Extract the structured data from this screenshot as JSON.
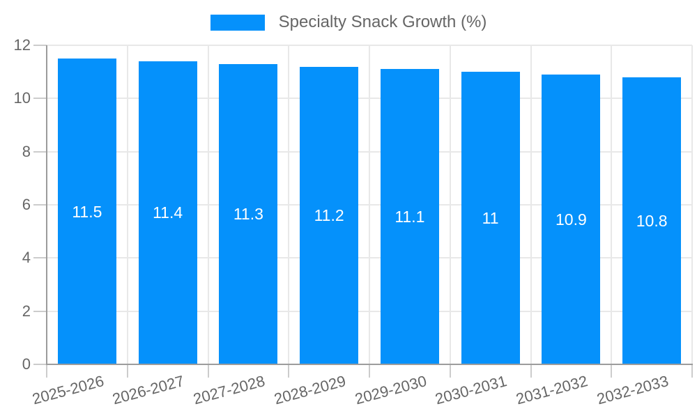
{
  "legend": {
    "position": "top",
    "label": "Specialty Snack Growth (%)"
  },
  "colors": {
    "bar": "#0591FB",
    "grid": "#E8E8E8",
    "axis": "#9C9C9C",
    "tick": "#CCCCCC",
    "label_text": "#666666",
    "value_text": "#FFFFFF",
    "background": "#FFFFFF"
  },
  "chart_data": {
    "type": "bar",
    "title": "Specialty Snack Growth (%)",
    "categories": [
      "2025-2026",
      "2026-2027",
      "2027-2028",
      "2028-2029",
      "2029-2030",
      "2030-2031",
      "2031-2032",
      "2032-2033"
    ],
    "values": [
      11.5,
      11.4,
      11.3,
      11.2,
      11.1,
      11,
      10.9,
      10.8
    ],
    "xlabel": "",
    "ylabel": "",
    "ylim": [
      0,
      12
    ],
    "yticks": [
      0,
      2,
      4,
      6,
      8,
      10,
      12
    ],
    "grid": true,
    "legend_position": "top",
    "bar_value_labels": true
  }
}
